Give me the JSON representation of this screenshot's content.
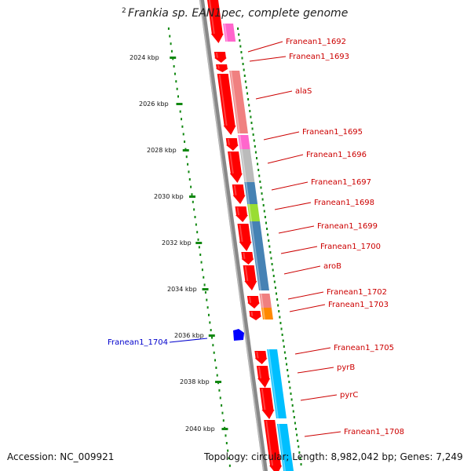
{
  "title": "Frankia sp. EAN1pec, complete genome",
  "title_fragment": "2",
  "footer": {
    "accession": "Accession: NC_009921",
    "summary": "Topology: circular; Length: 8,982,042 bp; Genes: 7,249"
  },
  "ruler": {
    "ticks": [
      "2024 kbp",
      "2026 kbp",
      "2028 kbp",
      "2030 kbp",
      "2032 kbp",
      "2034 kbp",
      "2036 kbp",
      "2038 kbp",
      "2040 kbp"
    ]
  },
  "genes": [
    {
      "label": "Franean1_1692",
      "color": "#cc0000"
    },
    {
      "label": "Franean1_1693",
      "color": "#cc0000"
    },
    {
      "label": "alaS",
      "color": "#cc0000"
    },
    {
      "label": "Franean1_1695",
      "color": "#cc0000"
    },
    {
      "label": "Franean1_1696",
      "color": "#cc0000"
    },
    {
      "label": "Franean1_1697",
      "color": "#cc0000"
    },
    {
      "label": "Franean1_1698",
      "color": "#cc0000"
    },
    {
      "label": "Franean1_1699",
      "color": "#cc0000"
    },
    {
      "label": "Franean1_1700",
      "color": "#cc0000"
    },
    {
      "label": "aroB",
      "color": "#cc0000"
    },
    {
      "label": "Franean1_1702",
      "color": "#cc0000"
    },
    {
      "label": "Franean1_1703",
      "color": "#cc0000"
    },
    {
      "label": "Franean1_1704",
      "color": "#0000cc"
    },
    {
      "label": "Franean1_1705",
      "color": "#cc0000"
    },
    {
      "label": "pyrB",
      "color": "#cc0000"
    },
    {
      "label": "pyrC",
      "color": "#cc0000"
    },
    {
      "label": "Franean1_1708",
      "color": "#cc0000"
    }
  ],
  "colors": {
    "forward_gene": "#ff0000",
    "reverse_gene": "#0000ff",
    "backbone": "#888888",
    "ruler_ticks": "#118811",
    "feature_pink": "#ff66cc",
    "feature_salmon": "#f08080",
    "feature_grey": "#bbbbbb",
    "feature_steelblue": "#4682b4",
    "feature_green": "#99dd33",
    "feature_orange": "#ff8800",
    "feature_skyblue": "#00bfff"
  }
}
